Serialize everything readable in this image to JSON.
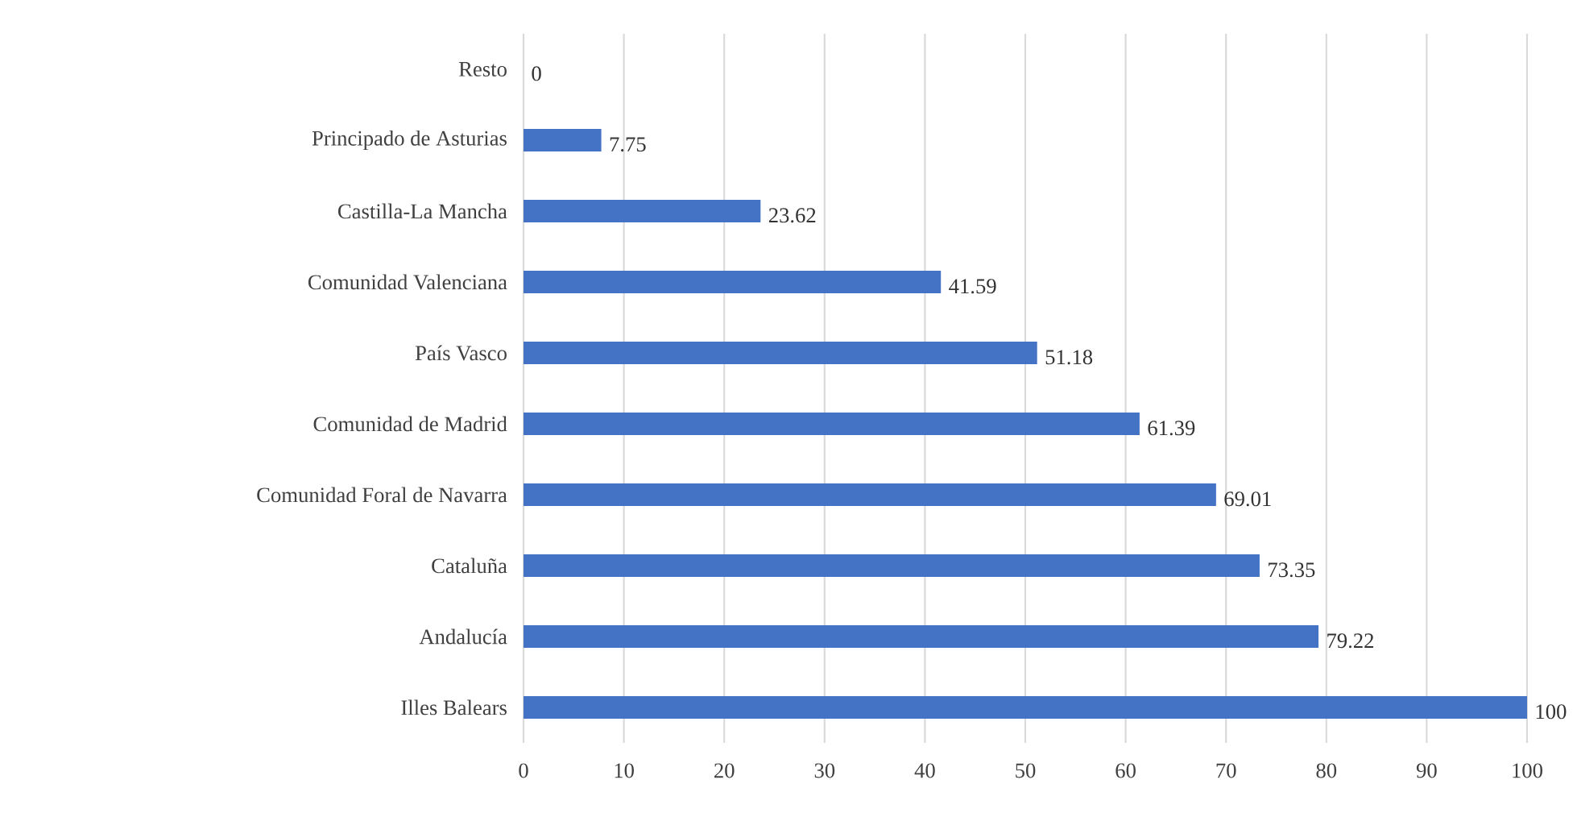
{
  "chart_data": {
    "type": "bar",
    "orientation": "horizontal",
    "categories": [
      "Resto",
      "Principado de Asturias",
      "Castilla-La Mancha",
      "Comunidad Valenciana",
      "País Vasco",
      "Comunidad de Madrid",
      "Comunidad Foral de Navarra",
      "Cataluña",
      "Andalucía",
      "Illes Balears"
    ],
    "values": [
      0,
      7.75,
      23.62,
      41.59,
      51.18,
      61.39,
      69.01,
      73.35,
      79.22,
      100
    ],
    "color": "#4472c4",
    "xlim": [
      0,
      100
    ],
    "xticks": [
      0,
      10,
      20,
      30,
      40,
      50,
      60,
      70,
      80,
      90,
      100
    ],
    "grid": "x",
    "data_labels": true
  }
}
